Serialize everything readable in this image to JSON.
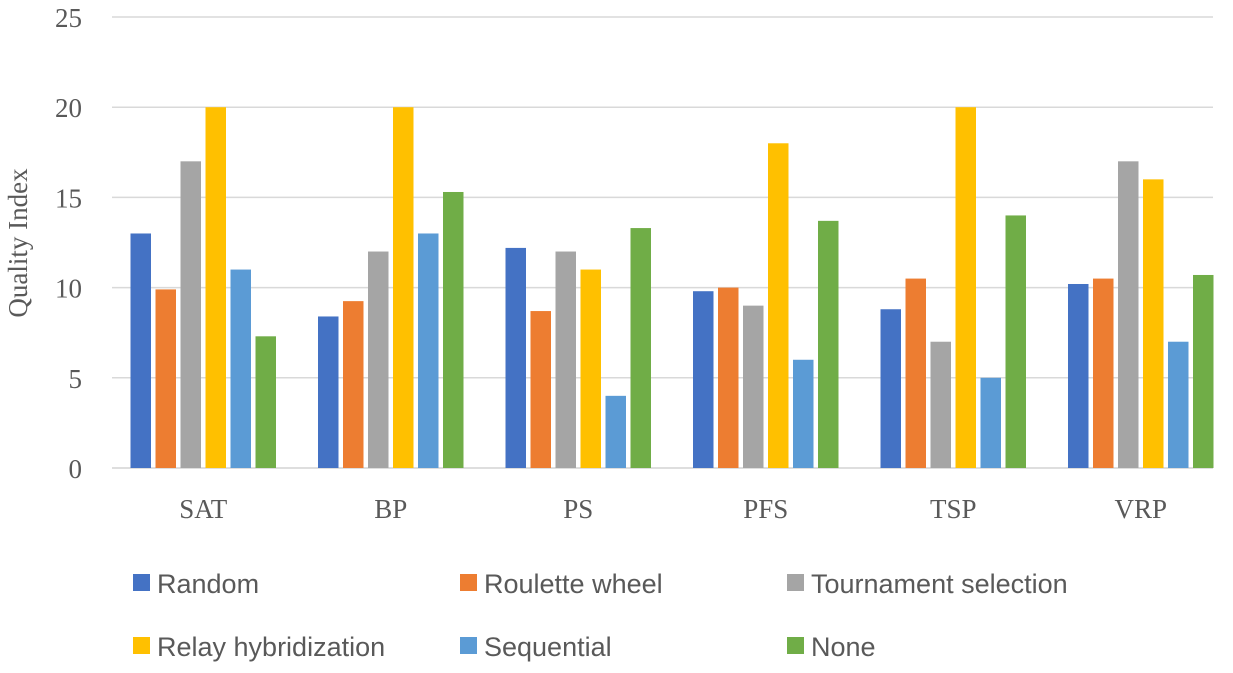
{
  "chart_data": {
    "type": "bar",
    "ylabel": "Quality Index",
    "xlabel": "",
    "ylim": [
      0,
      25
    ],
    "yticks": [
      0,
      5,
      10,
      15,
      20,
      25
    ],
    "grid": true,
    "legend_position": "bottom",
    "categories": [
      "SAT",
      "BP",
      "PS",
      "PFS",
      "TSP",
      "VRP"
    ],
    "series": [
      {
        "name": "Random",
        "color": "#4472C4",
        "values": [
          13,
          8.4,
          12.2,
          9.8,
          8.8,
          10.2
        ]
      },
      {
        "name": "Roulette wheel",
        "color": "#ED7D31",
        "values": [
          9.9,
          9.25,
          8.7,
          10,
          10.5,
          10.5
        ]
      },
      {
        "name": "Tournament selection",
        "color": "#A5A5A5",
        "values": [
          17,
          12,
          12,
          9,
          7,
          17
        ]
      },
      {
        "name": "Relay hybridization",
        "color": "#FFC000",
        "values": [
          20,
          20,
          11,
          18,
          20,
          16
        ]
      },
      {
        "name": "Sequential",
        "color": "#5B9BD5",
        "values": [
          11,
          13,
          4,
          6,
          5,
          7
        ]
      },
      {
        "name": "None",
        "color": "#70AD47",
        "values": [
          7.3,
          15.3,
          13.3,
          13.7,
          14,
          10.7
        ]
      }
    ]
  }
}
